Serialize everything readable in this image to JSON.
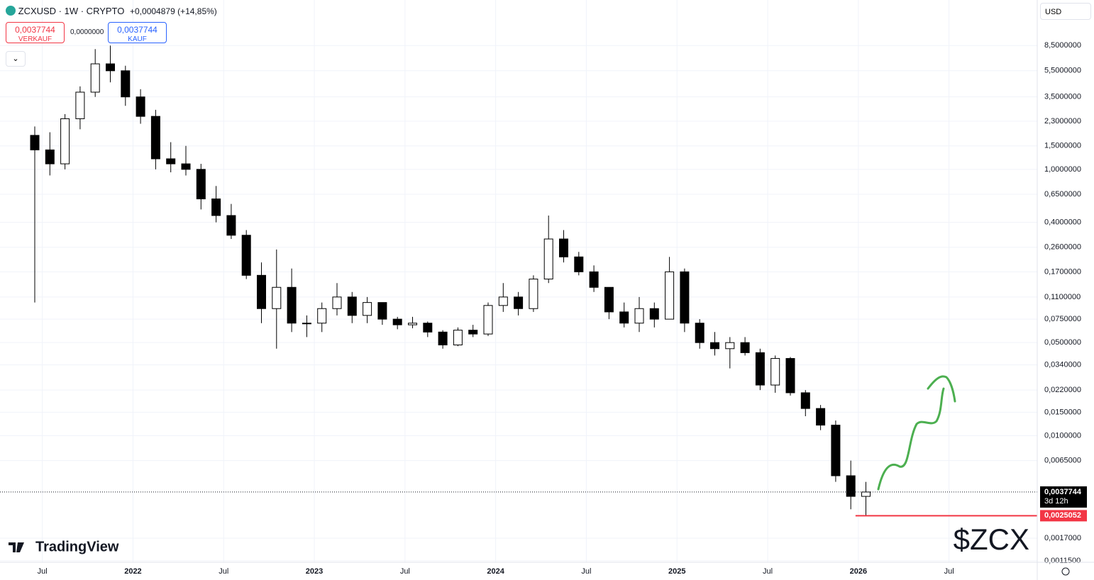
{
  "header": {
    "symbol": "ZCXUSD · 1W · CRYPTO",
    "change": "+0,0004879 (+14,85%)",
    "sell_price": "0,0037744",
    "sell_label": "VERKAUF",
    "spread": "0,0000000",
    "buy_price": "0,0037744",
    "buy_label": "KAUF",
    "currency": "USD",
    "brand": "TradingView",
    "ticker_note": "$ZCX"
  },
  "chart_data": {
    "type": "candlestick",
    "log_scale": true,
    "grid": true,
    "up_color": "#ffffff",
    "down_color": "#000000",
    "categories": [
      "2021-06",
      "2021-07",
      "2021-08",
      "2021-09",
      "2021-10",
      "2021-11",
      "2021-12",
      "2022-01",
      "2022-02",
      "2022-03",
      "2022-04",
      "2022-05",
      "2022-06",
      "2022-07",
      "2022-08",
      "2022-09",
      "2022-10",
      "2022-11",
      "2022-12",
      "2023-01",
      "2023-02",
      "2023-03",
      "2023-04",
      "2023-05",
      "2023-06",
      "2023-07",
      "2023-08",
      "2023-09",
      "2023-10",
      "2023-11",
      "2023-12",
      "2024-01",
      "2024-02",
      "2024-03",
      "2024-04",
      "2024-05",
      "2024-06",
      "2024-07",
      "2024-08",
      "2024-09",
      "2024-10",
      "2024-11",
      "2024-12",
      "2025-01",
      "2025-02",
      "2025-03",
      "2025-04",
      "2025-05",
      "2025-06",
      "2025-07",
      "2025-08",
      "2025-09",
      "2025-10",
      "2025-11",
      "2025-12",
      "2026-01"
    ],
    "open": [
      1.8,
      1.4,
      1.1,
      2.4,
      3.8,
      6.2,
      5.5,
      3.5,
      2.5,
      1.2,
      1.1,
      1.0,
      0.6,
      0.45,
      0.32,
      0.16,
      0.09,
      0.13,
      0.07,
      0.07,
      0.09,
      0.11,
      0.08,
      0.1,
      0.075,
      0.068,
      0.07,
      0.06,
      0.048,
      0.062,
      0.058,
      0.095,
      0.11,
      0.09,
      0.15,
      0.3,
      0.22,
      0.17,
      0.13,
      0.085,
      0.07,
      0.09,
      0.075,
      0.17,
      0.07,
      0.05,
      0.045,
      0.05,
      0.042,
      0.024,
      0.038,
      0.021,
      0.016,
      0.012,
      0.005,
      0.0035
    ],
    "high": [
      2.1,
      1.9,
      2.6,
      4.2,
      8.0,
      8.5,
      6.0,
      4.0,
      2.8,
      1.6,
      1.5,
      1.1,
      0.75,
      0.55,
      0.35,
      0.2,
      0.25,
      0.18,
      0.08,
      0.1,
      0.14,
      0.12,
      0.11,
      0.1,
      0.078,
      0.078,
      0.072,
      0.062,
      0.065,
      0.068,
      0.1,
      0.14,
      0.12,
      0.16,
      0.45,
      0.35,
      0.24,
      0.19,
      0.13,
      0.1,
      0.11,
      0.1,
      0.22,
      0.18,
      0.075,
      0.06,
      0.055,
      0.055,
      0.045,
      0.04,
      0.039,
      0.022,
      0.017,
      0.013,
      0.0065,
      0.0045
    ],
    "low": [
      0.1,
      0.9,
      1.0,
      2.0,
      3.5,
      4.5,
      3.0,
      2.2,
      1.0,
      0.95,
      0.9,
      0.5,
      0.4,
      0.3,
      0.15,
      0.07,
      0.045,
      0.06,
      0.055,
      0.06,
      0.08,
      0.07,
      0.07,
      0.068,
      0.063,
      0.064,
      0.055,
      0.045,
      0.047,
      0.055,
      0.056,
      0.085,
      0.08,
      0.085,
      0.14,
      0.2,
      0.16,
      0.12,
      0.075,
      0.065,
      0.06,
      0.065,
      0.075,
      0.06,
      0.045,
      0.04,
      0.032,
      0.04,
      0.022,
      0.021,
      0.02,
      0.014,
      0.011,
      0.0045,
      0.0028,
      0.0025
    ],
    "close": [
      1.4,
      1.1,
      2.4,
      3.8,
      6.2,
      5.5,
      3.5,
      2.5,
      1.2,
      1.1,
      1.0,
      0.6,
      0.45,
      0.32,
      0.16,
      0.09,
      0.13,
      0.07,
      0.07,
      0.09,
      0.11,
      0.08,
      0.1,
      0.075,
      0.068,
      0.07,
      0.06,
      0.048,
      0.062,
      0.058,
      0.095,
      0.11,
      0.09,
      0.15,
      0.3,
      0.22,
      0.17,
      0.13,
      0.085,
      0.07,
      0.09,
      0.075,
      0.17,
      0.07,
      0.05,
      0.045,
      0.05,
      0.042,
      0.024,
      0.038,
      0.021,
      0.016,
      0.012,
      0.005,
      0.0035,
      0.0037744
    ],
    "ylim": [
      0.00112,
      18.7
    ],
    "yticks": [
      {
        "value": 8.5,
        "label": "8,5000000"
      },
      {
        "value": 5.5,
        "label": "5,5000000"
      },
      {
        "value": 3.5,
        "label": "3,5000000"
      },
      {
        "value": 2.3,
        "label": "2,3000000"
      },
      {
        "value": 1.5,
        "label": "1,5000000"
      },
      {
        "value": 1.0,
        "label": "1,0000000"
      },
      {
        "value": 0.65,
        "label": "0,6500000"
      },
      {
        "value": 0.4,
        "label": "0,4000000"
      },
      {
        "value": 0.26,
        "label": "0,2600000"
      },
      {
        "value": 0.17,
        "label": "0,1700000"
      },
      {
        "value": 0.11,
        "label": "0,1100000"
      },
      {
        "value": 0.075,
        "label": "0,0750000"
      },
      {
        "value": 0.05,
        "label": "0,0500000"
      },
      {
        "value": 0.034,
        "label": "0,0340000"
      },
      {
        "value": 0.022,
        "label": "0,0220000"
      },
      {
        "value": 0.015,
        "label": "0,0150000"
      },
      {
        "value": 0.01,
        "label": "0,0100000"
      },
      {
        "value": 0.0065,
        "label": "0,0065000"
      },
      {
        "value": 0.0017,
        "label": "0,0017000"
      },
      {
        "value": 0.00115,
        "label": "0,0011500"
      }
    ],
    "xticks": [
      {
        "value": "2021-07",
        "label": "Jul"
      },
      {
        "value": "2022-01",
        "label": "2022"
      },
      {
        "value": "2022-07",
        "label": "Jul"
      },
      {
        "value": "2023-01",
        "label": "2023"
      },
      {
        "value": "2023-07",
        "label": "Jul"
      },
      {
        "value": "2024-01",
        "label": "2024"
      },
      {
        "value": "2024-07",
        "label": "Jul"
      },
      {
        "value": "2025-01",
        "label": "2025"
      },
      {
        "value": "2025-07",
        "label": "Jul"
      },
      {
        "value": "2026-01",
        "label": "2026"
      },
      {
        "value": "2026-07",
        "label": "Jul"
      }
    ],
    "last_price": {
      "value": 0.0037744,
      "label": "0,0037744"
    },
    "countdown": "3d 12h",
    "low_line": {
      "value": 0.0025052,
      "label": "0,0025052",
      "color": "#f23645"
    }
  }
}
